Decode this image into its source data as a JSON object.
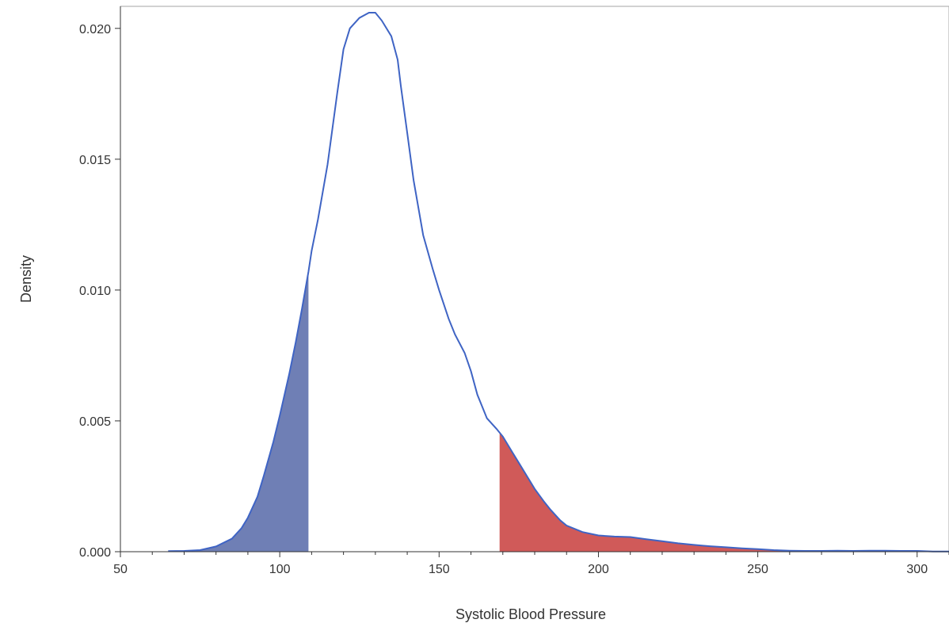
{
  "chart_data": {
    "type": "area",
    "xlabel": "Systolic Blood Pressure",
    "ylabel": "Density",
    "xlim": [
      50,
      310
    ],
    "ylim": [
      0,
      0.0206
    ],
    "xticks": [
      50,
      100,
      150,
      200,
      250,
      300
    ],
    "yticks": [
      0.0,
      0.005,
      0.01,
      0.015,
      0.02
    ],
    "ytick_labels": [
      "0.000",
      "0.005",
      "0.010",
      "0.015",
      "0.020"
    ],
    "grid": false,
    "density_curve": {
      "x": [
        65,
        70,
        75,
        80,
        85,
        88,
        90,
        93,
        95,
        98,
        100,
        103,
        105,
        107,
        109,
        110,
        112,
        115,
        118,
        120,
        122,
        125,
        128,
        130,
        132,
        135,
        137,
        138,
        140,
        142,
        145,
        148,
        150,
        153,
        155,
        158,
        160,
        162,
        165,
        168,
        170,
        173,
        175,
        178,
        180,
        183,
        185,
        188,
        190,
        195,
        200,
        205,
        210,
        215,
        220,
        225,
        230,
        235,
        240,
        245,
        250,
        255,
        260,
        265,
        270,
        275,
        280,
        285,
        290,
        295,
        300,
        305,
        310
      ],
      "y": [
        2e-05,
        3e-05,
        6e-05,
        0.0002,
        0.0005,
        0.0009,
        0.0013,
        0.0021,
        0.0029,
        0.0042,
        0.0052,
        0.0068,
        0.008,
        0.0093,
        0.0107,
        0.0115,
        0.0127,
        0.0148,
        0.0175,
        0.0192,
        0.02,
        0.0204,
        0.0206,
        0.0206,
        0.0203,
        0.0197,
        0.0188,
        0.0178,
        0.016,
        0.0142,
        0.0121,
        0.0108,
        0.01,
        0.0089,
        0.0083,
        0.0076,
        0.0069,
        0.006,
        0.0051,
        0.0047,
        0.0044,
        0.0038,
        0.0034,
        0.0028,
        0.0024,
        0.0019,
        0.0016,
        0.0012,
        0.001,
        0.00075,
        0.00062,
        0.00058,
        0.00056,
        0.00048,
        0.0004,
        0.00032,
        0.00026,
        0.00021,
        0.00017,
        0.00013,
        0.0001,
        6e-05,
        4e-05,
        3e-05,
        3e-05,
        4e-05,
        3e-05,
        4e-05,
        4e-05,
        3e-05,
        3e-05,
        1e-05,
        1e-05
      ],
      "color": "#3f64c4"
    },
    "shaded_regions": [
      {
        "from": 65,
        "to": 109,
        "color": "#6f7fb5"
      },
      {
        "from": 169,
        "to": 310,
        "color": "#d05a59"
      }
    ]
  }
}
